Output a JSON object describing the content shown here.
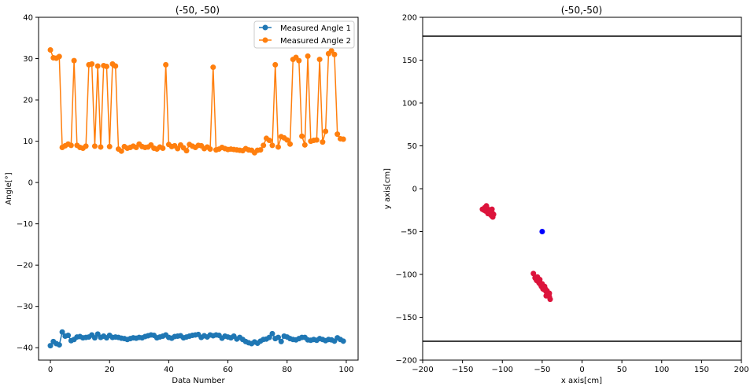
{
  "colors": {
    "series1": "#1f77b4",
    "series2": "#ff7f0e",
    "scatter_points": "#dc143c",
    "origin_point": "#0000ff",
    "wall_lines": "#000000"
  },
  "chart_data": [
    {
      "type": "line",
      "title": "(-50, -50)",
      "xlabel": "Data Number",
      "ylabel": "Angle[°]",
      "xlim": [
        -4,
        104
      ],
      "ylim": [
        -43,
        40
      ],
      "xticks": [
        0,
        20,
        40,
        60,
        80,
        100
      ],
      "xtick_labels": [
        "0",
        "20",
        "40",
        "60",
        "80",
        "100"
      ],
      "yticks": [
        -40,
        -30,
        -20,
        -10,
        0,
        10,
        20,
        30,
        40
      ],
      "ytick_labels": [
        "−40",
        "−30",
        "−20",
        "−10",
        "0",
        "10",
        "20",
        "30",
        "40"
      ],
      "grid": false,
      "legend": "top-right",
      "x": [
        0,
        1,
        2,
        3,
        4,
        5,
        6,
        7,
        8,
        9,
        10,
        11,
        12,
        13,
        14,
        15,
        16,
        17,
        18,
        19,
        20,
        21,
        22,
        23,
        24,
        25,
        26,
        27,
        28,
        29,
        30,
        31,
        32,
        33,
        34,
        35,
        36,
        37,
        38,
        39,
        40,
        41,
        42,
        43,
        44,
        45,
        46,
        47,
        48,
        49,
        50,
        51,
        52,
        53,
        54,
        55,
        56,
        57,
        58,
        59,
        60,
        61,
        62,
        63,
        64,
        65,
        66,
        67,
        68,
        69,
        70,
        71,
        72,
        73,
        74,
        75,
        76,
        77,
        78,
        79,
        80,
        81,
        82,
        83,
        84,
        85,
        86,
        87,
        88,
        89,
        90,
        91,
        92,
        93,
        94,
        95,
        96,
        97,
        98,
        99
      ],
      "series": [
        {
          "name": "Measured Angle 1",
          "values": [
            -39.5,
            -38.5,
            -39,
            -39.3,
            -36.2,
            -37.2,
            -37,
            -38.3,
            -38,
            -37.4,
            -37.3,
            -37.6,
            -37.5,
            -37.4,
            -36.9,
            -37.6,
            -36.7,
            -37.5,
            -37.2,
            -37.6,
            -37,
            -37.5,
            -37.4,
            -37.5,
            -37.7,
            -37.8,
            -38,
            -37.8,
            -37.6,
            -37.7,
            -37.5,
            -37.6,
            -37.3,
            -37.1,
            -36.9,
            -37,
            -37.6,
            -37.4,
            -37.2,
            -36.9,
            -37.5,
            -37.7,
            -37.3,
            -37.2,
            -37.1,
            -37.6,
            -37.4,
            -37.2,
            -37,
            -36.9,
            -36.8,
            -37.5,
            -37.1,
            -37.4,
            -36.9,
            -37.1,
            -36.9,
            -37,
            -37.7,
            -37.2,
            -37.4,
            -37.6,
            -37.2,
            -37.9,
            -37.5,
            -38,
            -38.5,
            -38.8,
            -39,
            -38.6,
            -38.9,
            -38.4,
            -38,
            -37.9,
            -37.5,
            -36.6,
            -37.8,
            -37.5,
            -38.5,
            -37.2,
            -37.4,
            -37.8,
            -38,
            -38.1,
            -37.8,
            -37.5,
            -37.5,
            -38.1,
            -38.2,
            -38,
            -38.2,
            -37.8,
            -38,
            -38.3,
            -38,
            -38.1,
            -38.4,
            -37.6,
            -38,
            -38.4
          ]
        },
        {
          "name": "Measured Angle 2",
          "values": [
            32.1,
            30.2,
            30.1,
            30.5,
            8.5,
            8.9,
            9.3,
            9,
            29.5,
            9,
            8.5,
            8.3,
            8.8,
            28.5,
            28.7,
            8.8,
            28.2,
            8.6,
            28.3,
            28.1,
            8.7,
            28.7,
            28.2,
            8.1,
            7.6,
            8.7,
            8.3,
            8.5,
            8.8,
            8.5,
            9.3,
            8.7,
            8.5,
            8.6,
            9.1,
            8.3,
            8.1,
            8.6,
            8.3,
            28.5,
            9.2,
            8.7,
            8.9,
            8.2,
            9.1,
            8.4,
            7.7,
            9.2,
            8.8,
            8.5,
            9,
            8.9,
            8.2,
            8.6,
            8.1,
            27.9,
            7.9,
            8.1,
            8.5,
            8.2,
            8,
            8.1,
            8,
            7.9,
            7.8,
            7.7,
            8.2,
            7.9,
            7.8,
            7.2,
            7.8,
            7.9,
            9,
            10.7,
            10.2,
            9,
            28.5,
            8.6,
            11.1,
            10.8,
            10.3,
            9.3,
            29.8,
            30.3,
            29.5,
            11.2,
            9.1,
            30.6,
            10,
            10.2,
            10.3,
            29.8,
            9.8,
            12.4,
            31.2,
            31.9,
            31,
            11.7,
            10.6,
            10.5
          ]
        }
      ]
    },
    {
      "type": "scatter",
      "title": "(-50,-50)",
      "xlabel": "x axis[cm]",
      "ylabel": "y axis[cm]",
      "xlim": [
        -200,
        200
      ],
      "ylim": [
        -200,
        200
      ],
      "xticks": [
        -200,
        -150,
        -100,
        -50,
        0,
        50,
        100,
        150,
        200
      ],
      "xtick_labels": [
        "−200",
        "−150",
        "−100",
        "−50",
        "0",
        "50",
        "100",
        "150",
        "200"
      ],
      "yticks": [
        -200,
        -150,
        -100,
        -50,
        0,
        50,
        100,
        150,
        200
      ],
      "ytick_labels": [
        "−200",
        "−150",
        "−100",
        "−50",
        "0",
        "50",
        "100",
        "150",
        "200"
      ],
      "grid": false,
      "hlines": [
        178,
        -178
      ],
      "origin": {
        "x": -50,
        "y": -50
      },
      "cluster_a": {
        "x": [
          -125,
          -122,
          -120,
          -118,
          -116,
          -115,
          -114,
          -113,
          -112,
          -121,
          -119,
          -117,
          -115,
          -113,
          -111,
          -118,
          -116,
          -114,
          -112,
          -123
        ],
        "y": [
          -24,
          -22,
          -20,
          -28,
          -25,
          -30,
          -27,
          -32,
          -29,
          -26,
          -23,
          -27,
          -28,
          -24,
          -30,
          -29,
          -26,
          -31,
          -33,
          -25
        ]
      },
      "cluster_b": {
        "x": [
          -61,
          -59,
          -57,
          -56,
          -55,
          -54,
          -53,
          -52,
          -51,
          -50,
          -49,
          -48,
          -47,
          -46,
          -45,
          -44,
          -43,
          -42,
          -41,
          -40,
          -53,
          -50,
          -47,
          -44,
          -41,
          -56,
          -58,
          -49,
          -45
        ],
        "y": [
          -99,
          -104,
          -107,
          -106,
          -108,
          -110,
          -109,
          -112,
          -114,
          -113,
          -116,
          -115,
          -118,
          -117,
          -120,
          -121,
          -123,
          -124,
          -126,
          -129,
          -106,
          -111,
          -114,
          -119,
          -122,
          -103,
          -105,
          -117,
          -125
        ]
      }
    }
  ]
}
